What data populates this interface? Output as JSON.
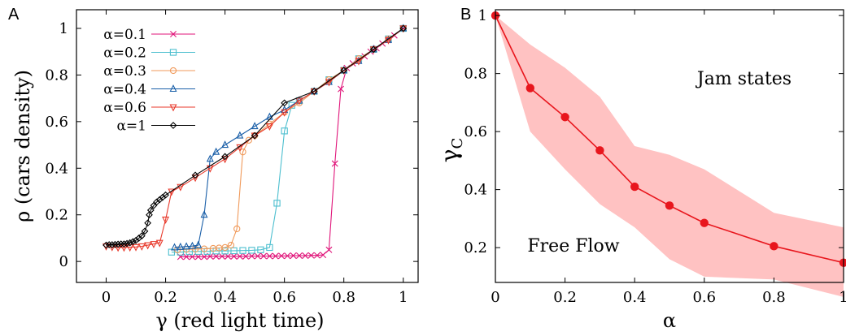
{
  "chart_data": [
    {
      "panel_label": "A",
      "type": "line",
      "xlabel": "γ (red light time)",
      "ylabel": "ρ (cars density)",
      "xlim": [
        -0.1,
        1.05
      ],
      "ylim": [
        -0.09,
        1.08
      ],
      "xticks": [
        "0",
        "0.2",
        "0.4",
        "0.6",
        "0.8",
        "1"
      ],
      "yticks": [
        "0",
        "0.2",
        "0.4",
        "0.6",
        "0.8",
        "1"
      ],
      "legend_position": "top-left",
      "series": [
        {
          "name": "α=0.1",
          "color": "#e0157a",
          "marker": "x",
          "points": [
            [
              0.25,
              0.02
            ],
            [
              0.27,
              0.02
            ],
            [
              0.29,
              0.02
            ],
            [
              0.31,
              0.02
            ],
            [
              0.33,
              0.02
            ],
            [
              0.35,
              0.022
            ],
            [
              0.37,
              0.022
            ],
            [
              0.39,
              0.022
            ],
            [
              0.41,
              0.022
            ],
            [
              0.43,
              0.022
            ],
            [
              0.45,
              0.022
            ],
            [
              0.47,
              0.022
            ],
            [
              0.49,
              0.023
            ],
            [
              0.51,
              0.023
            ],
            [
              0.53,
              0.023
            ],
            [
              0.55,
              0.023
            ],
            [
              0.57,
              0.023
            ],
            [
              0.59,
              0.024
            ],
            [
              0.61,
              0.024
            ],
            [
              0.63,
              0.025
            ],
            [
              0.65,
              0.025
            ],
            [
              0.67,
              0.025
            ],
            [
              0.69,
              0.026
            ],
            [
              0.71,
              0.026
            ],
            [
              0.73,
              0.028
            ],
            [
              0.75,
              0.05
            ],
            [
              0.77,
              0.42
            ],
            [
              0.79,
              0.74
            ],
            [
              0.81,
              0.83
            ],
            [
              0.83,
              0.85
            ],
            [
              0.85,
              0.865
            ],
            [
              0.87,
              0.88
            ],
            [
              0.89,
              0.9
            ],
            [
              0.91,
              0.915
            ],
            [
              0.93,
              0.935
            ],
            [
              0.95,
              0.95
            ],
            [
              0.97,
              0.97
            ],
            [
              1.0,
              1.0
            ]
          ]
        },
        {
          "name": "α=0.2",
          "color": "#4dbfcf",
          "marker": "square",
          "points": [
            [
              0.22,
              0.04
            ],
            [
              0.25,
              0.04
            ],
            [
              0.28,
              0.042
            ],
            [
              0.31,
              0.043
            ],
            [
              0.34,
              0.043
            ],
            [
              0.37,
              0.045
            ],
            [
              0.4,
              0.045
            ],
            [
              0.43,
              0.046
            ],
            [
              0.46,
              0.047
            ],
            [
              0.49,
              0.048
            ],
            [
              0.52,
              0.05
            ],
            [
              0.55,
              0.06
            ],
            [
              0.575,
              0.25
            ],
            [
              0.6,
              0.56
            ],
            [
              0.625,
              0.67
            ],
            [
              0.65,
              0.69
            ],
            [
              0.7,
              0.73
            ],
            [
              0.75,
              0.78
            ],
            [
              0.8,
              0.82
            ],
            [
              0.85,
              0.87
            ],
            [
              0.9,
              0.91
            ],
            [
              0.95,
              0.955
            ],
            [
              1.0,
              1.0
            ]
          ]
        },
        {
          "name": "α=0.3",
          "color": "#f09a5b",
          "marker": "circle",
          "points": [
            [
              0.24,
              0.05
            ],
            [
              0.27,
              0.052
            ],
            [
              0.3,
              0.053
            ],
            [
              0.33,
              0.054
            ],
            [
              0.36,
              0.056
            ],
            [
              0.38,
              0.058
            ],
            [
              0.4,
              0.06
            ],
            [
              0.42,
              0.07
            ],
            [
              0.44,
              0.14
            ],
            [
              0.46,
              0.47
            ],
            [
              0.48,
              0.52
            ],
            [
              0.5,
              0.54
            ],
            [
              0.55,
              0.59
            ],
            [
              0.6,
              0.64
            ],
            [
              0.65,
              0.68
            ],
            [
              0.7,
              0.73
            ],
            [
              0.75,
              0.78
            ],
            [
              0.8,
              0.82
            ],
            [
              0.85,
              0.87
            ],
            [
              0.9,
              0.91
            ],
            [
              0.95,
              0.955
            ],
            [
              1.0,
              1.0
            ]
          ]
        },
        {
          "name": "α=0.4",
          "color": "#1a5fa8",
          "marker": "triangle-up",
          "points": [
            [
              0.23,
              0.06
            ],
            [
              0.25,
              0.062
            ],
            [
              0.27,
              0.064
            ],
            [
              0.29,
              0.066
            ],
            [
              0.31,
              0.07
            ],
            [
              0.33,
              0.2
            ],
            [
              0.35,
              0.44
            ],
            [
              0.37,
              0.47
            ],
            [
              0.4,
              0.5
            ],
            [
              0.45,
              0.54
            ],
            [
              0.5,
              0.58
            ],
            [
              0.55,
              0.62
            ],
            [
              0.6,
              0.65
            ],
            [
              0.65,
              0.69
            ],
            [
              0.7,
              0.73
            ],
            [
              0.75,
              0.77
            ],
            [
              0.8,
              0.82
            ],
            [
              0.85,
              0.86
            ],
            [
              0.9,
              0.91
            ],
            [
              0.95,
              0.95
            ],
            [
              1.0,
              1.0
            ]
          ]
        },
        {
          "name": "α=0.6",
          "color": "#e8392b",
          "marker": "triangle-down",
          "points": [
            [
              0.0,
              0.065
            ],
            [
              0.02,
              0.062
            ],
            [
              0.04,
              0.06
            ],
            [
              0.06,
              0.06
            ],
            [
              0.08,
              0.061
            ],
            [
              0.1,
              0.062
            ],
            [
              0.12,
              0.065
            ],
            [
              0.14,
              0.07
            ],
            [
              0.16,
              0.075
            ],
            [
              0.18,
              0.08
            ],
            [
              0.2,
              0.18
            ],
            [
              0.22,
              0.3
            ],
            [
              0.25,
              0.32
            ],
            [
              0.3,
              0.36
            ],
            [
              0.35,
              0.4
            ],
            [
              0.4,
              0.44
            ],
            [
              0.45,
              0.49
            ],
            [
              0.5,
              0.54
            ],
            [
              0.55,
              0.58
            ],
            [
              0.6,
              0.64
            ],
            [
              0.65,
              0.69
            ],
            [
              0.7,
              0.73
            ],
            [
              0.75,
              0.77
            ],
            [
              0.8,
              0.82
            ],
            [
              0.85,
              0.86
            ],
            [
              0.9,
              0.91
            ],
            [
              0.95,
              0.95
            ],
            [
              1.0,
              1.0
            ]
          ]
        },
        {
          "name": "α=1",
          "color": "#000000",
          "marker": "diamond",
          "points": [
            [
              0.0,
              0.07
            ],
            [
              0.01,
              0.072
            ],
            [
              0.02,
              0.072
            ],
            [
              0.03,
              0.073
            ],
            [
              0.04,
              0.074
            ],
            [
              0.05,
              0.075
            ],
            [
              0.06,
              0.075
            ],
            [
              0.07,
              0.077
            ],
            [
              0.08,
              0.08
            ],
            [
              0.09,
              0.085
            ],
            [
              0.1,
              0.09
            ],
            [
              0.11,
              0.1
            ],
            [
              0.12,
              0.11
            ],
            [
              0.13,
              0.13
            ],
            [
              0.14,
              0.165
            ],
            [
              0.145,
              0.2
            ],
            [
              0.15,
              0.22
            ],
            [
              0.16,
              0.24
            ],
            [
              0.17,
              0.255
            ],
            [
              0.18,
              0.265
            ],
            [
              0.19,
              0.275
            ],
            [
              0.2,
              0.285
            ],
            [
              0.3,
              0.37
            ],
            [
              0.4,
              0.45
            ],
            [
              0.5,
              0.54
            ],
            [
              0.6,
              0.68
            ],
            [
              0.7,
              0.73
            ],
            [
              0.8,
              0.82
            ],
            [
              0.9,
              0.91
            ],
            [
              1.0,
              1.0
            ]
          ]
        }
      ]
    },
    {
      "panel_label": "B",
      "type": "line",
      "xlabel": "α",
      "ylabel": "γ",
      "ylabel_subscript": "C",
      "xlim": [
        0,
        1
      ],
      "ylim": [
        0.08,
        1.02
      ],
      "xticks": [
        "0",
        "0.2",
        "0.4",
        "0.6",
        "0.8",
        "1"
      ],
      "yticks": [
        "0.2",
        "0.4",
        "0.6",
        "0.8",
        "1"
      ],
      "annotations": [
        "Jam states",
        "Free Flow"
      ],
      "band_color": "#ffc2c2",
      "line_color": "#e8161d",
      "series": [
        {
          "points": [
            [
              0,
              1.0
            ],
            [
              0.1,
              0.75
            ],
            [
              0.2,
              0.65
            ],
            [
              0.3,
              0.535
            ],
            [
              0.4,
              0.41
            ],
            [
              0.5,
              0.345
            ],
            [
              0.6,
              0.285
            ],
            [
              0.8,
              0.205
            ],
            [
              1.0,
              0.148
            ]
          ]
        }
      ],
      "band": {
        "x": [
          0,
          0.1,
          0.2,
          0.3,
          0.4,
          0.5,
          0.6,
          0.8,
          1.0
        ],
        "upper": [
          1.0,
          0.9,
          0.82,
          0.72,
          0.55,
          0.52,
          0.47,
          0.32,
          0.27
        ],
        "lower": [
          1.0,
          0.6,
          0.47,
          0.35,
          0.27,
          0.16,
          0.1,
          0.09,
          0.03
        ]
      }
    }
  ]
}
